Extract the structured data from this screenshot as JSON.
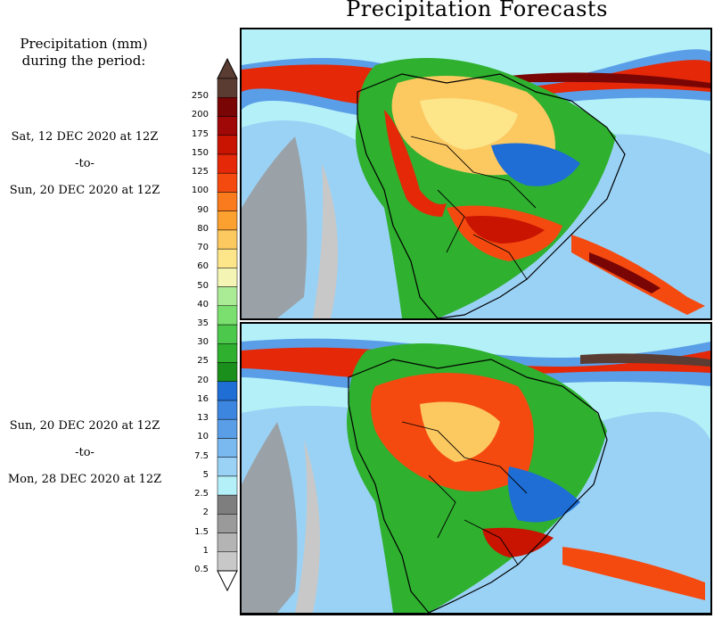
{
  "title": "Precipitation Forecasts",
  "legend": {
    "header_line1": "Precipitation (mm)",
    "header_line2": "during the period:",
    "levels": [
      "0.5",
      "1",
      "1.5",
      "2",
      "2.5",
      "5",
      "7.5",
      "10",
      "13",
      "16",
      "20",
      "25",
      "30",
      "35",
      "40",
      "50",
      "60",
      "70",
      "80",
      "90",
      "100",
      "125",
      "150",
      "175",
      "200",
      "250"
    ],
    "colors": [
      "#c8c8c8",
      "#b4b4b4",
      "#9a9a9a",
      "#7e7e7e",
      "#b4f0f8",
      "#9ad2f5",
      "#7ab8f0",
      "#5a9ee8",
      "#3c86e0",
      "#1e6ed6",
      "#1b8f1b",
      "#2fb02f",
      "#4cc84c",
      "#7adf6e",
      "#aaeb96",
      "#f4f5b4",
      "#fde58a",
      "#fcc860",
      "#fca030",
      "#fa7a1e",
      "#f44a10",
      "#e42808",
      "#c81400",
      "#a00808",
      "#7a0505",
      "#5a3c32"
    ],
    "arrow_top_color": "#5a3c32",
    "arrow_bottom_color": "#ffffff"
  },
  "periods": [
    {
      "start": "Sat, 12 DEC 2020 at 12Z",
      "to": "-to-",
      "end": "Sun, 20 DEC 2020 at 12Z"
    },
    {
      "start": "Sun, 20 DEC 2020 at 12Z",
      "to": "-to-",
      "end": "Mon, 28 DEC 2020 at 12Z"
    }
  ],
  "maps": [
    {
      "name": "forecast-map-1",
      "region": "South America"
    },
    {
      "name": "forecast-map-2",
      "region": "South America"
    }
  ]
}
